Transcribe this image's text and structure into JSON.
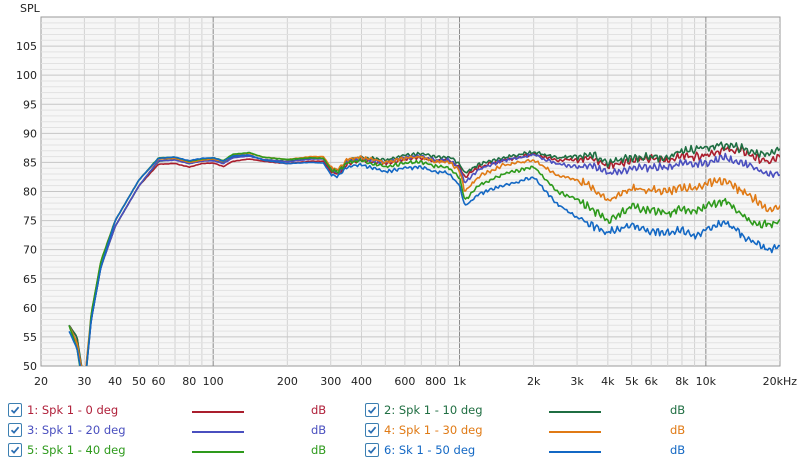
{
  "chart_data": {
    "type": "line",
    "ylabel": "SPL",
    "x_scale": "log",
    "xlim": [
      20,
      20000
    ],
    "ylim": [
      50,
      110
    ],
    "grid": true,
    "y_ticks": [
      {
        "value": 50,
        "label": "50"
      },
      {
        "value": 55,
        "label": "55"
      },
      {
        "value": 60,
        "label": "60"
      },
      {
        "value": 65,
        "label": "65"
      },
      {
        "value": 70,
        "label": "70"
      },
      {
        "value": 75,
        "label": "75"
      },
      {
        "value": 80,
        "label": "80"
      },
      {
        "value": 85,
        "label": "85"
      },
      {
        "value": 90,
        "label": "90"
      },
      {
        "value": 95,
        "label": "95"
      },
      {
        "value": 100,
        "label": "100"
      },
      {
        "value": 105,
        "label": "105"
      }
    ],
    "x_ticks": [
      {
        "value": 20,
        "label": "20"
      },
      {
        "value": 30,
        "label": "30"
      },
      {
        "value": 40,
        "label": "40"
      },
      {
        "value": 50,
        "label": "50"
      },
      {
        "value": 60,
        "label": "60"
      },
      {
        "value": 80,
        "label": "80"
      },
      {
        "value": 100,
        "label": "100"
      },
      {
        "value": 200,
        "label": "200"
      },
      {
        "value": 300,
        "label": "300"
      },
      {
        "value": 400,
        "label": "400"
      },
      {
        "value": 600,
        "label": "600"
      },
      {
        "value": 800,
        "label": "800"
      },
      {
        "value": 1000,
        "label": "1k"
      },
      {
        "value": 2000,
        "label": "2k"
      },
      {
        "value": 3000,
        "label": "3k"
      },
      {
        "value": 4000,
        "label": "4k"
      },
      {
        "value": 5000,
        "label": "5k"
      },
      {
        "value": 6000,
        "label": "6k"
      },
      {
        "value": 8000,
        "label": "8k"
      },
      {
        "value": 10000,
        "label": "10k"
      },
      {
        "value": 20000,
        "label": "20kHz"
      }
    ],
    "x": [
      26,
      28,
      30,
      32,
      35,
      40,
      50,
      60,
      70,
      80,
      90,
      100,
      110,
      120,
      140,
      160,
      200,
      250,
      280,
      300,
      320,
      350,
      400,
      500,
      600,
      700,
      800,
      900,
      1000,
      1050,
      1200,
      1500,
      2000,
      2500,
      3000,
      3500,
      4000,
      5000,
      6000,
      7000,
      8000,
      9000,
      10000,
      12000,
      14000,
      16000,
      18000,
      20000
    ],
    "series": [
      {
        "name": "1: Spk 1 - 0 deg",
        "color": "#aa1e2d",
        "values": [
          57,
          55,
          46,
          58,
          67,
          74,
          81,
          84.7,
          84.8,
          84.2,
          84.8,
          84.9,
          84.3,
          85.2,
          85.6,
          85.2,
          84.8,
          85.2,
          85.2,
          83.5,
          82.9,
          84.8,
          85.4,
          84.8,
          85.6,
          85.8,
          85.2,
          85.4,
          84.2,
          82.5,
          84.2,
          85.4,
          86.4,
          85.4,
          85.6,
          85.6,
          84.4,
          85.4,
          85.6,
          85.4,
          86.2,
          86.0,
          86.4,
          87.2,
          87.0,
          85.8,
          85.0,
          86.0
        ]
      },
      {
        "name": "2: Spk 1 - 10 deg",
        "color": "#1f6e42",
        "values": [
          57,
          55,
          47,
          58,
          67,
          74,
          81,
          85.2,
          85.5,
          84.8,
          85.3,
          85.4,
          84.9,
          85.9,
          86.1,
          85.5,
          85.2,
          85.7,
          85.7,
          84.0,
          83.4,
          85.3,
          85.9,
          85.4,
          86.2,
          86.5,
          85.9,
          86.0,
          84.8,
          83.2,
          84.7,
          85.8,
          86.8,
          85.8,
          86.1,
          86.2,
          84.9,
          85.8,
          86.0,
          85.8,
          87.0,
          87.2,
          87.6,
          88.0,
          87.4,
          86.6,
          86.5,
          87.6
        ]
      },
      {
        "name": "3: Spk 1 - 20 deg",
        "color": "#4a4fbf",
        "values": [
          57,
          54,
          47,
          58,
          67,
          74,
          81,
          85.3,
          85.4,
          84.8,
          85.2,
          85.3,
          84.8,
          85.8,
          86.1,
          85.5,
          85.1,
          85.6,
          85.6,
          83.9,
          83.2,
          85.1,
          85.6,
          85.0,
          85.8,
          86.1,
          85.3,
          85.5,
          84.0,
          81.5,
          83.8,
          85.3,
          86.3,
          84.7,
          84.3,
          84.5,
          83.0,
          84.0,
          84.2,
          84.0,
          84.8,
          84.6,
          85.0,
          85.8,
          84.8,
          84.0,
          82.8,
          83.0
        ]
      },
      {
        "name": "4: Spk 1 - 30 deg",
        "color": "#e07a15",
        "values": [
          57,
          54,
          47,
          59,
          68,
          75,
          82,
          85.6,
          85.7,
          85.0,
          85.4,
          85.6,
          85.1,
          86.2,
          86.6,
          85.9,
          85.5,
          86.0,
          86.0,
          84.2,
          83.7,
          85.5,
          85.9,
          85.0,
          85.7,
          86.0,
          85.1,
          85.2,
          83.6,
          80.0,
          82.6,
          84.5,
          85.4,
          82.8,
          82.0,
          80.6,
          78.4,
          80.6,
          80.3,
          80.0,
          80.8,
          80.4,
          81.4,
          81.8,
          80.0,
          78.6,
          76.6,
          77.6
        ]
      },
      {
        "name": "5: Spk 1 - 40 deg",
        "color": "#2e9a1c",
        "values": [
          57,
          53,
          45,
          59,
          68,
          75,
          82,
          85.8,
          85.9,
          85.2,
          85.6,
          85.8,
          85.3,
          86.4,
          86.7,
          85.9,
          85.5,
          85.8,
          85.7,
          83.9,
          83.3,
          85.0,
          85.3,
          84.2,
          84.9,
          85.1,
          84.3,
          84.2,
          82.4,
          78.5,
          81.0,
          83.0,
          84.2,
          80.0,
          78.6,
          76.8,
          74.8,
          77.4,
          76.8,
          76.2,
          77.0,
          76.4,
          77.4,
          78.4,
          76.0,
          74.2,
          74.4,
          74.6
        ]
      },
      {
        "name": "6: Sk 1 - 50 deg",
        "color": "#1368c4",
        "values": [
          56,
          53,
          46,
          58,
          67,
          75,
          82,
          85.7,
          85.9,
          85.3,
          85.7,
          85.8,
          85.2,
          86.1,
          86.3,
          85.4,
          84.8,
          85.0,
          84.9,
          83.0,
          82.6,
          84.3,
          84.6,
          83.4,
          84.0,
          84.2,
          83.3,
          83.2,
          81.0,
          77.5,
          79.6,
          81.0,
          82.4,
          77.8,
          75.6,
          74.0,
          73.0,
          74.2,
          73.2,
          72.8,
          73.4,
          72.4,
          73.4,
          74.8,
          72.6,
          71.0,
          70.0,
          70.6
        ]
      }
    ]
  },
  "legend": {
    "items": [
      {
        "label": "1: Spk 1 - 0 deg",
        "unit": "dB",
        "color": "#aa1e2d",
        "checked": true,
        "label_color": "#b0203a"
      },
      {
        "label": "2: Spk 1 - 10 deg",
        "unit": "dB",
        "color": "#1f6e42",
        "checked": true,
        "label_color": "#1f6e42"
      },
      {
        "label": "3: Spk 1 - 20 deg",
        "unit": "dB",
        "color": "#4a4fbf",
        "checked": true,
        "label_color": "#4a4fbf"
      },
      {
        "label": "4: Spk 1 - 30 deg",
        "unit": "dB",
        "color": "#e07a15",
        "checked": true,
        "label_color": "#e07a15"
      },
      {
        "label": "5: Spk 1 - 40 deg",
        "unit": "dB",
        "color": "#2e9a1c",
        "checked": true,
        "label_color": "#2e9a1c"
      },
      {
        "label": "6: Sk 1 - 50 deg",
        "unit": "dB",
        "color": "#1368c4",
        "checked": true,
        "label_color": "#1368c4"
      }
    ]
  }
}
